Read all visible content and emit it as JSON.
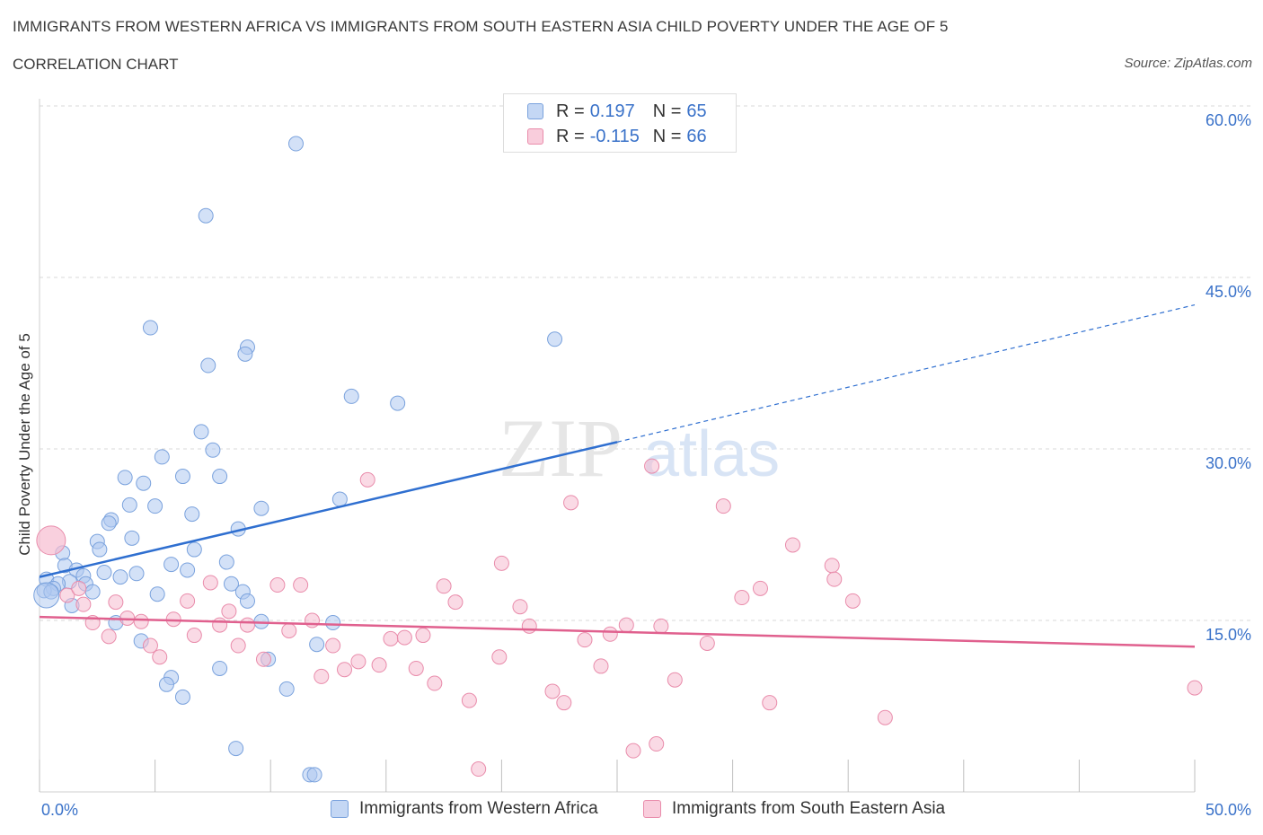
{
  "title": "IMMIGRANTS FROM WESTERN AFRICA VS IMMIGRANTS FROM SOUTH EASTERN ASIA CHILD POVERTY UNDER THE AGE OF 5",
  "subtitle": "CORRELATION CHART",
  "source": "Source: ZipAtlas.com",
  "watermark": {
    "zip": "ZIP",
    "atlas": "atlas"
  },
  "legend_top": {
    "rows": [
      {
        "r_label": "R =",
        "r_value": "0.197",
        "n_label": "N =",
        "n_value": "65"
      },
      {
        "r_label": "R =",
        "r_value": "-0.115",
        "n_label": "N =",
        "n_value": "66"
      }
    ]
  },
  "colors": {
    "blue_fill": "#aec8f0",
    "blue_stroke": "#7aa2dd",
    "blue_line": "#2f6fd0",
    "pink_fill": "#f6bcd0",
    "pink_stroke": "#e98cab",
    "pink_line": "#e0608e",
    "axis_label": "#3a72c9",
    "grid": "#d9d9d9"
  },
  "chart_data": {
    "type": "scatter",
    "title": "IMMIGRANTS FROM WESTERN AFRICA VS IMMIGRANTS FROM SOUTH EASTERN ASIA CHILD POVERTY UNDER THE AGE OF 5",
    "xlabel": "",
    "ylabel": "Child Poverty Under the Age of 5",
    "xlim": [
      0,
      50
    ],
    "ylim": [
      0,
      60
    ],
    "x_tick_labels": [
      "0.0%",
      "50.0%"
    ],
    "y_ticks": [
      15,
      30,
      45,
      60
    ],
    "y_tick_labels": [
      "15.0%",
      "30.0%",
      "45.0%",
      "60.0%"
    ],
    "grid": true,
    "legend_position": "bottom",
    "series": [
      {
        "name": "Immigrants from Western Africa",
        "color": "blue",
        "r": 0.197,
        "n": 65,
        "trend": {
          "x0": 0,
          "y0": 18.8,
          "x_solid_end": 25,
          "y_solid_end": 30.6,
          "x1": 50,
          "y1": 42.6
        },
        "points": [
          [
            11.1,
            56.7
          ],
          [
            7.2,
            50.4
          ],
          [
            4.8,
            40.6
          ],
          [
            9.0,
            38.9
          ],
          [
            8.9,
            38.3
          ],
          [
            7.3,
            37.3
          ],
          [
            22.3,
            39.6
          ],
          [
            13.5,
            34.6
          ],
          [
            15.5,
            34.0
          ],
          [
            7.0,
            31.5
          ],
          [
            5.3,
            29.3
          ],
          [
            7.5,
            29.9
          ],
          [
            3.7,
            27.5
          ],
          [
            4.5,
            27.0
          ],
          [
            6.2,
            27.6
          ],
          [
            7.8,
            27.6
          ],
          [
            5.0,
            25.0
          ],
          [
            3.9,
            25.1
          ],
          [
            9.6,
            24.8
          ],
          [
            13.0,
            25.6
          ],
          [
            6.6,
            24.3
          ],
          [
            3.1,
            23.8
          ],
          [
            3.0,
            23.5
          ],
          [
            8.6,
            23.0
          ],
          [
            4.0,
            22.2
          ],
          [
            2.5,
            21.9
          ],
          [
            2.6,
            21.2
          ],
          [
            6.7,
            21.2
          ],
          [
            1.0,
            20.9
          ],
          [
            8.1,
            20.1
          ],
          [
            1.1,
            19.8
          ],
          [
            5.7,
            19.9
          ],
          [
            6.4,
            19.4
          ],
          [
            1.6,
            19.4
          ],
          [
            2.8,
            19.2
          ],
          [
            4.2,
            19.1
          ],
          [
            3.5,
            18.8
          ],
          [
            1.9,
            18.9
          ],
          [
            0.3,
            18.6
          ],
          [
            1.3,
            18.4
          ],
          [
            0.8,
            18.2
          ],
          [
            2.0,
            18.2
          ],
          [
            8.3,
            18.2
          ],
          [
            0.6,
            17.8
          ],
          [
            0.2,
            17.6
          ],
          [
            0.5,
            17.5
          ],
          [
            2.3,
            17.5
          ],
          [
            8.8,
            17.5
          ],
          [
            5.1,
            17.3
          ],
          [
            9.0,
            16.7
          ],
          [
            1.4,
            16.3
          ],
          [
            9.6,
            14.9
          ],
          [
            3.3,
            14.8
          ],
          [
            12.7,
            14.8
          ],
          [
            4.4,
            13.2
          ],
          [
            12.0,
            12.9
          ],
          [
            9.9,
            11.6
          ],
          [
            7.8,
            10.8
          ],
          [
            5.7,
            10.0
          ],
          [
            5.5,
            9.4
          ],
          [
            10.7,
            9.0
          ],
          [
            6.2,
            8.3
          ],
          [
            8.5,
            3.8
          ],
          [
            11.7,
            1.5
          ],
          [
            11.9,
            1.5
          ]
        ]
      },
      {
        "name": "Immigrants from South Eastern Asia",
        "color": "pink",
        "r": -0.115,
        "n": 66,
        "trend": {
          "x0": 0,
          "y0": 15.3,
          "x1": 50,
          "y1": 12.7
        },
        "points": [
          [
            0.5,
            22.0
          ],
          [
            1.2,
            17.2
          ],
          [
            1.9,
            16.4
          ],
          [
            3.3,
            16.6
          ],
          [
            1.7,
            17.8
          ],
          [
            2.3,
            14.8
          ],
          [
            3.0,
            13.6
          ],
          [
            3.8,
            15.2
          ],
          [
            4.4,
            14.9
          ],
          [
            4.8,
            12.8
          ],
          [
            5.2,
            11.8
          ],
          [
            5.8,
            15.1
          ],
          [
            6.4,
            16.7
          ],
          [
            6.7,
            13.7
          ],
          [
            7.4,
            18.3
          ],
          [
            7.8,
            14.6
          ],
          [
            8.2,
            15.8
          ],
          [
            8.6,
            12.8
          ],
          [
            9.0,
            14.6
          ],
          [
            9.7,
            11.6
          ],
          [
            10.3,
            18.1
          ],
          [
            10.8,
            14.1
          ],
          [
            11.3,
            18.1
          ],
          [
            11.8,
            15.0
          ],
          [
            12.2,
            10.1
          ],
          [
            12.7,
            12.8
          ],
          [
            13.2,
            10.7
          ],
          [
            13.8,
            11.4
          ],
          [
            14.2,
            27.3
          ],
          [
            14.7,
            11.1
          ],
          [
            15.2,
            13.4
          ],
          [
            15.8,
            13.5
          ],
          [
            16.3,
            10.8
          ],
          [
            16.6,
            13.7
          ],
          [
            17.1,
            9.5
          ],
          [
            17.5,
            18.0
          ],
          [
            18.0,
            16.6
          ],
          [
            18.6,
            8.0
          ],
          [
            19.0,
            2.0
          ],
          [
            19.9,
            11.8
          ],
          [
            20.0,
            20.0
          ],
          [
            20.8,
            16.2
          ],
          [
            21.2,
            14.5
          ],
          [
            22.2,
            8.8
          ],
          [
            22.7,
            7.8
          ],
          [
            23.0,
            25.3
          ],
          [
            23.6,
            13.3
          ],
          [
            24.3,
            11.0
          ],
          [
            24.7,
            13.8
          ],
          [
            25.4,
            14.6
          ],
          [
            25.7,
            3.6
          ],
          [
            26.5,
            28.5
          ],
          [
            26.7,
            4.2
          ],
          [
            26.9,
            14.5
          ],
          [
            27.5,
            9.8
          ],
          [
            28.9,
            13.0
          ],
          [
            29.6,
            25.0
          ],
          [
            30.4,
            17.0
          ],
          [
            31.2,
            17.8
          ],
          [
            31.6,
            7.8
          ],
          [
            32.6,
            21.6
          ],
          [
            34.3,
            19.8
          ],
          [
            34.4,
            18.6
          ],
          [
            35.2,
            16.7
          ],
          [
            36.6,
            6.5
          ],
          [
            50.0,
            9.1
          ]
        ]
      }
    ]
  },
  "legend_bottom": [
    {
      "label": "Immigrants from Western Africa"
    },
    {
      "label": "Immigrants from South Eastern Asia"
    }
  ]
}
